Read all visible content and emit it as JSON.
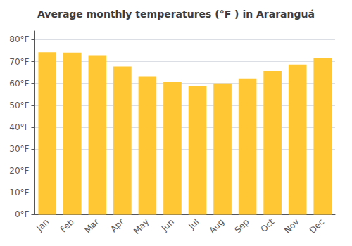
{
  "chart_data": {
    "type": "bar",
    "title": "Average monthly temperatures (°F ) in Araranguá",
    "categories": [
      "Jan",
      "Feb",
      "Mar",
      "Apr",
      "May",
      "Jun",
      "Jul",
      "Aug",
      "Sep",
      "Oct",
      "Nov",
      "Dec"
    ],
    "values": [
      74.3,
      74.1,
      72.9,
      67.8,
      63.3,
      60.6,
      58.8,
      60.0,
      62.2,
      65.7,
      68.7,
      71.8
    ],
    "color": "#FFC733",
    "ylim": [
      0,
      84
    ],
    "yticks": [
      {
        "value": 0,
        "label": "0°F"
      },
      {
        "value": 10,
        "label": "10°F"
      },
      {
        "value": 20,
        "label": "20°F"
      },
      {
        "value": 30,
        "label": "30°F"
      },
      {
        "value": 40,
        "label": "40°F"
      },
      {
        "value": 50,
        "label": "50°F"
      },
      {
        "value": 60,
        "label": "60°F"
      },
      {
        "value": 70,
        "label": "70°F"
      },
      {
        "value": 80,
        "label": "80°F"
      }
    ],
    "grid": true
  }
}
